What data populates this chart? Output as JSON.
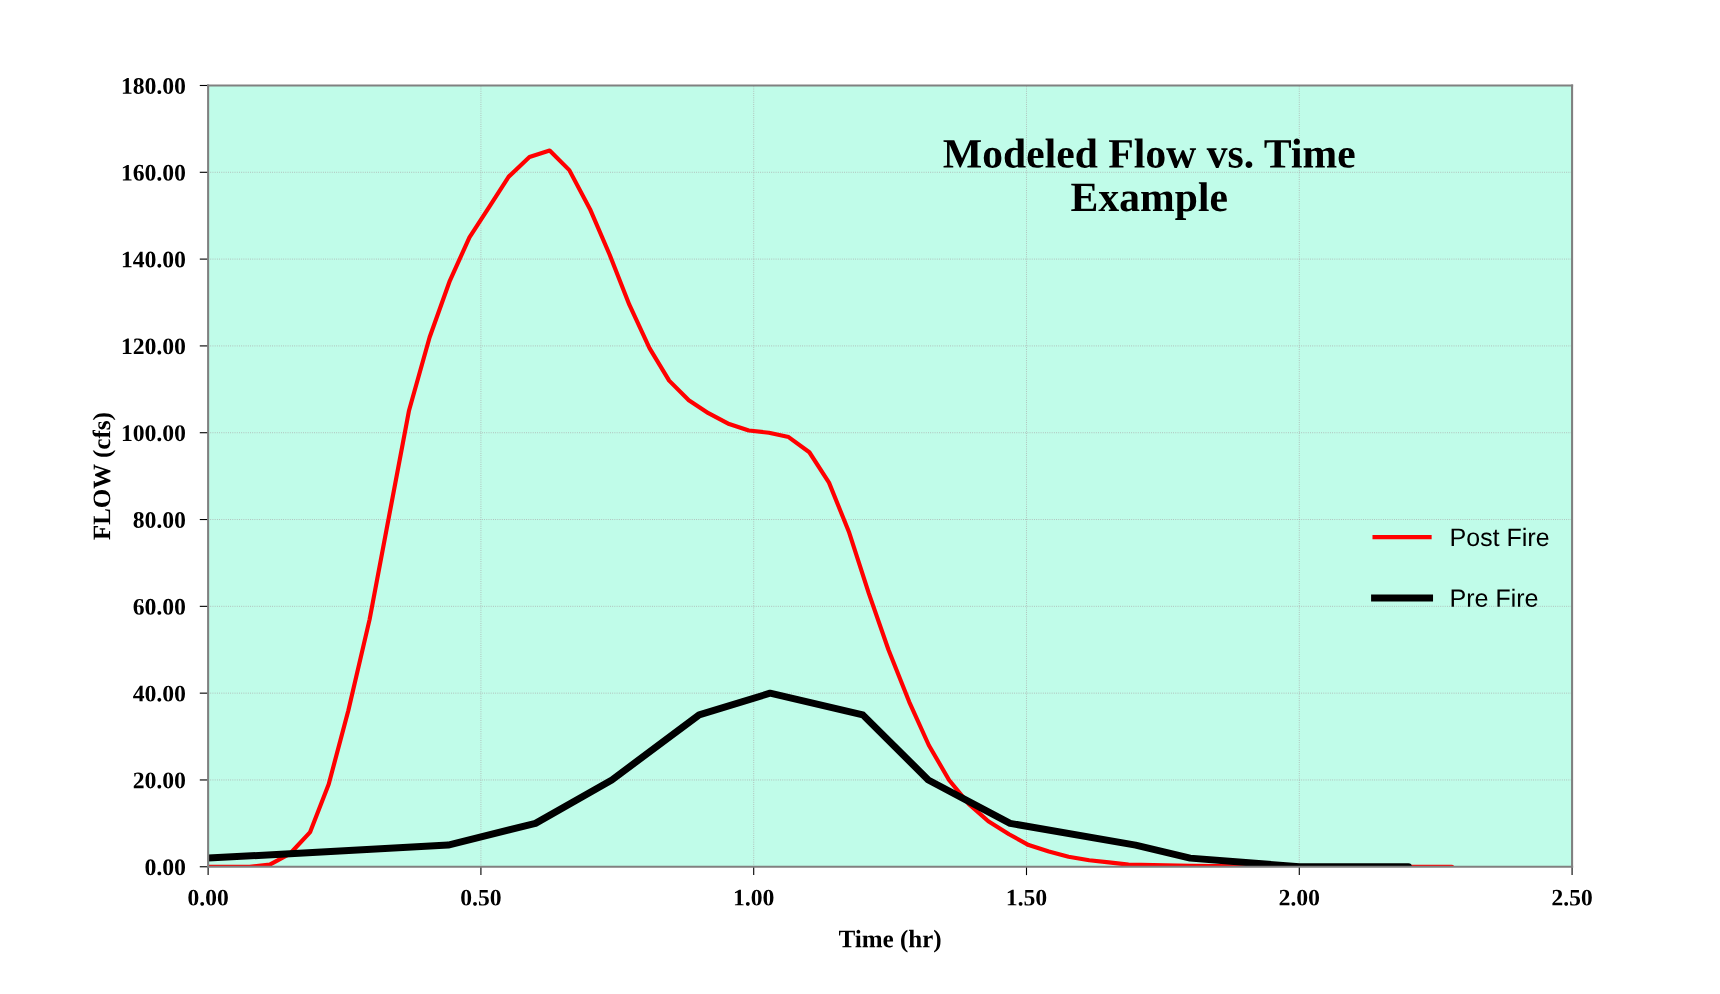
{
  "chart_data": {
    "type": "line",
    "title": "Modeled Flow vs. Time\nExample",
    "xlabel": "Time (hr)",
    "ylabel": "FLOW (cfs)",
    "series": [
      {
        "name": "Post Fire",
        "color": "#ff0000",
        "x": [
          0,
          0.076,
          0.113,
          0.15,
          0.187,
          0.221,
          0.257,
          0.296,
          0.332,
          0.368,
          0.406,
          0.443,
          0.479,
          0.515,
          0.551,
          0.589,
          0.626,
          0.662,
          0.7,
          0.736,
          0.772,
          0.809,
          0.845,
          0.881,
          0.917,
          0.955,
          0.991,
          1.028,
          1.064,
          1.102,
          1.138,
          1.175,
          1.211,
          1.247,
          1.285,
          1.321,
          1.358,
          1.394,
          1.43,
          1.468,
          1.504,
          1.541,
          1.577,
          1.615,
          1.651,
          1.687,
          1.8,
          2.0,
          2.28
        ],
        "values": [
          0,
          0,
          0.5,
          3,
          8,
          19,
          36,
          57,
          81,
          105,
          122,
          135,
          145,
          152,
          159,
          163.5,
          165,
          160.5,
          151.5,
          141,
          129.5,
          119.5,
          112,
          107.5,
          104.5,
          102,
          100.5,
          100,
          99,
          95.5,
          88.5,
          77,
          63,
          50,
          38,
          28,
          20,
          14.5,
          10.5,
          7.5,
          5,
          3.5,
          2.3,
          1.5,
          1,
          0.5,
          0.2,
          0,
          0
        ]
      },
      {
        "name": "Pre Fire",
        "color": "#000000",
        "x": [
          0,
          0.15,
          0.44,
          0.6,
          0.74,
          0.9,
          1.03,
          1.2,
          1.32,
          1.47,
          1.7,
          1.8,
          2.0,
          2.2
        ],
        "values": [
          2,
          3,
          5,
          10,
          20,
          35,
          40,
          35,
          20,
          10,
          5,
          2,
          0,
          0
        ]
      }
    ],
    "xlim": [
      0,
      2.5
    ],
    "ylim": [
      0,
      180
    ],
    "xticks": [
      {
        "value": 0,
        "label": "0.00"
      },
      {
        "value": 0.5,
        "label": "0.50"
      },
      {
        "value": 1,
        "label": "1.00"
      },
      {
        "value": 1.5,
        "label": "1.50"
      },
      {
        "value": 2,
        "label": "2.00"
      },
      {
        "value": 2.5,
        "label": "2.50"
      }
    ],
    "yticks": [
      {
        "value": 0,
        "label": "0.00"
      },
      {
        "value": 20,
        "label": "20.00"
      },
      {
        "value": 40,
        "label": "40.00"
      },
      {
        "value": 60,
        "label": "60.00"
      },
      {
        "value": 80,
        "label": "80.00"
      },
      {
        "value": 100,
        "label": "100.00"
      },
      {
        "value": 120,
        "label": "120.00"
      },
      {
        "value": 140,
        "label": "140.00"
      },
      {
        "value": 160,
        "label": "160.00"
      },
      {
        "value": 180,
        "label": "180.00"
      }
    ],
    "grid": true,
    "legend": "right",
    "marker": "none",
    "line_style": "solid"
  }
}
